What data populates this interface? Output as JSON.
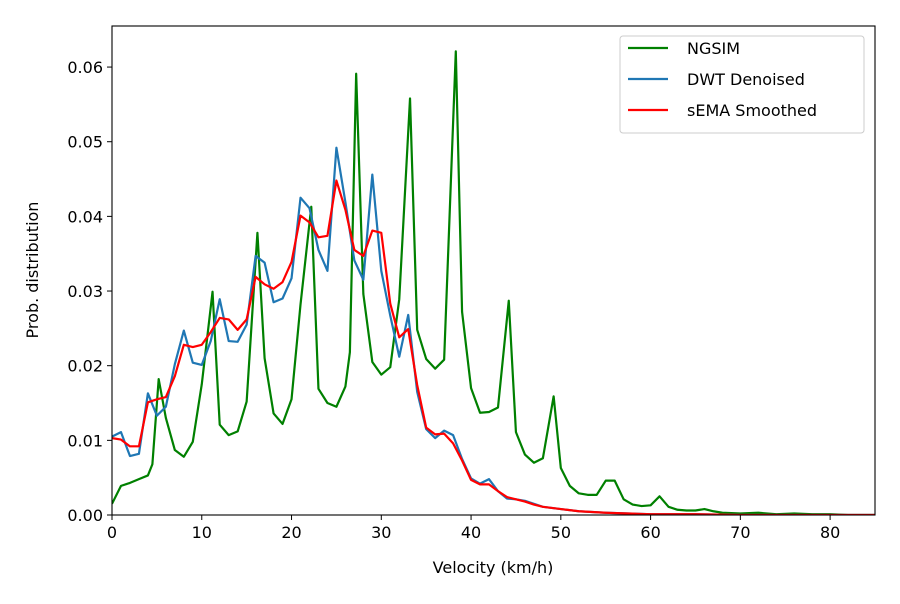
{
  "chart_data": {
    "type": "line",
    "title": "",
    "xlabel": "Velocity (km/h)",
    "ylabel": "Prob. distribution",
    "xlim": [
      0,
      85
    ],
    "ylim": [
      0,
      0.0655
    ],
    "xticks": [
      0,
      10,
      20,
      30,
      40,
      50,
      60,
      70,
      80
    ],
    "xtick_labels": [
      "0",
      "10",
      "20",
      "30",
      "40",
      "50",
      "60",
      "70",
      "80"
    ],
    "yticks": [
      0.0,
      0.01,
      0.02,
      0.03,
      0.04,
      0.05,
      0.06
    ],
    "ytick_labels": [
      "0.00",
      "0.01",
      "0.02",
      "0.03",
      "0.04",
      "0.05",
      "0.06"
    ],
    "grid": false,
    "legend_position": "top-right",
    "series": [
      {
        "name": "NGSIM",
        "color": "#008000",
        "x": [
          0,
          1,
          2,
          3,
          4,
          4.5,
          5.2,
          6,
          7,
          8,
          9,
          10,
          11.2,
          12,
          13,
          14,
          15,
          16.2,
          17,
          18,
          19,
          20,
          21,
          22.2,
          23,
          24,
          25,
          26,
          26.5,
          27.2,
          28,
          29,
          30,
          31,
          32,
          33.2,
          34,
          35,
          36,
          37,
          38.3,
          39,
          40,
          41,
          42,
          43,
          44.2,
          45,
          46,
          47,
          48,
          49.2,
          50,
          51,
          52,
          53,
          54,
          55,
          56,
          57,
          58,
          59,
          60,
          61,
          62,
          63,
          64,
          65,
          66,
          67,
          68,
          70,
          72,
          74,
          76,
          78,
          80,
          82,
          85
        ],
        "values": [
          0.0015,
          0.0039,
          0.0043,
          0.0048,
          0.0053,
          0.0068,
          0.0182,
          0.013,
          0.0087,
          0.0078,
          0.0098,
          0.0175,
          0.0299,
          0.0121,
          0.0107,
          0.0112,
          0.0152,
          0.0378,
          0.021,
          0.0136,
          0.0122,
          0.0155,
          0.0282,
          0.0413,
          0.0169,
          0.015,
          0.0145,
          0.0172,
          0.0218,
          0.0591,
          0.0296,
          0.0205,
          0.0188,
          0.0198,
          0.0289,
          0.0558,
          0.0248,
          0.0209,
          0.0196,
          0.0208,
          0.0621,
          0.0272,
          0.017,
          0.0137,
          0.0138,
          0.0144,
          0.0287,
          0.0111,
          0.0081,
          0.007,
          0.0076,
          0.0159,
          0.0063,
          0.0039,
          0.0029,
          0.0027,
          0.0027,
          0.0046,
          0.0046,
          0.0021,
          0.0014,
          0.0012,
          0.0013,
          0.0025,
          0.0011,
          0.0007,
          0.0006,
          0.0006,
          0.0008,
          0.0005,
          0.0003,
          0.0002,
          0.0003,
          0.0001,
          0.0002,
          0.0001,
          0.0001,
          0.0,
          0.0
        ]
      },
      {
        "name": "DWT Denoised",
        "color": "#1f77b4",
        "x": [
          0,
          1,
          2,
          3,
          4,
          5,
          6,
          7,
          8,
          9,
          10,
          11,
          12,
          13,
          14,
          15,
          16,
          17,
          18,
          19,
          20,
          21,
          22,
          23,
          24,
          25,
          26,
          27,
          28,
          29,
          30,
          31,
          32,
          33,
          34,
          35,
          36,
          37,
          38,
          39,
          40,
          41,
          42,
          43,
          44,
          45,
          46,
          47,
          48,
          50,
          52,
          55,
          60,
          65,
          70,
          75,
          80,
          85
        ],
        "values": [
          0.0105,
          0.0111,
          0.0079,
          0.0082,
          0.0163,
          0.0133,
          0.0145,
          0.0202,
          0.0247,
          0.0204,
          0.0201,
          0.0233,
          0.0289,
          0.0233,
          0.0232,
          0.0255,
          0.0347,
          0.0338,
          0.0285,
          0.029,
          0.0317,
          0.0425,
          0.0411,
          0.0355,
          0.0327,
          0.0492,
          0.0419,
          0.0341,
          0.0315,
          0.0456,
          0.0327,
          0.0267,
          0.0212,
          0.0268,
          0.0165,
          0.0115,
          0.0103,
          0.0113,
          0.0107,
          0.0075,
          0.0049,
          0.0042,
          0.0048,
          0.0032,
          0.0022,
          0.0021,
          0.0019,
          0.0015,
          0.0011,
          0.0008,
          0.0005,
          0.0003,
          0.0001,
          0.0001,
          0.0,
          0.0,
          0.0,
          0.0
        ]
      },
      {
        "name": "sEMA Smoothed",
        "color": "#ff0000",
        "x": [
          0,
          1,
          2,
          3,
          4,
          5,
          6,
          7,
          8,
          9,
          10,
          11,
          12,
          13,
          14,
          15,
          16,
          17,
          18,
          19,
          20,
          21,
          22,
          23,
          24,
          25,
          26,
          27,
          28,
          29,
          30,
          31,
          32,
          33,
          34,
          35,
          36,
          37,
          38,
          39,
          40,
          41,
          42,
          43,
          44,
          45,
          46,
          47,
          48,
          50,
          52,
          55,
          60,
          65,
          70,
          75,
          80,
          85
        ],
        "values": [
          0.0103,
          0.0101,
          0.0092,
          0.0092,
          0.0151,
          0.0155,
          0.0158,
          0.0186,
          0.0228,
          0.0225,
          0.0228,
          0.0245,
          0.0264,
          0.0262,
          0.0248,
          0.0262,
          0.0319,
          0.0309,
          0.0303,
          0.0312,
          0.0339,
          0.0401,
          0.0392,
          0.0372,
          0.0374,
          0.0448,
          0.0409,
          0.0355,
          0.0347,
          0.0381,
          0.0378,
          0.0283,
          0.0238,
          0.0249,
          0.0174,
          0.0117,
          0.0108,
          0.0109,
          0.0096,
          0.0073,
          0.0047,
          0.0041,
          0.0041,
          0.0032,
          0.0024,
          0.0021,
          0.0018,
          0.0014,
          0.0011,
          0.0008,
          0.0005,
          0.0003,
          0.0001,
          0.0001,
          0.0,
          0.0,
          0.0,
          0.0
        ]
      }
    ]
  }
}
